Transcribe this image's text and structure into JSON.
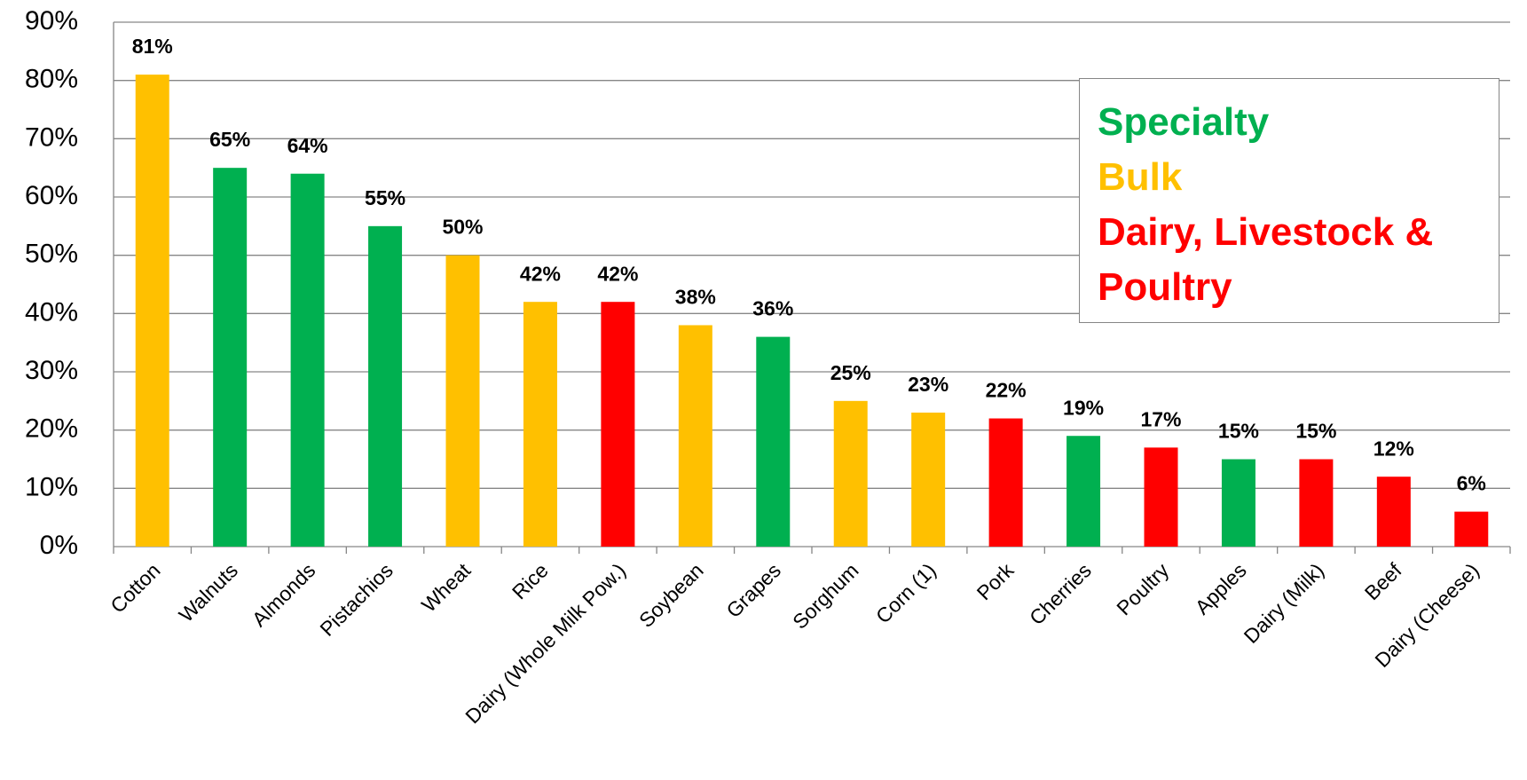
{
  "chart_data": {
    "type": "bar",
    "categories": [
      "Cotton",
      "Walnuts",
      "Almonds",
      "Pistachios",
      "Wheat",
      "Rice",
      "Dairy (Whole Milk Pow.)",
      "Soybean",
      "Grapes",
      "Sorghum",
      "Corn (1)",
      "Pork",
      "Cherries",
      "Poultry",
      "Apples",
      "Dairy (Milk)",
      "Beef",
      "Dairy (Cheese)"
    ],
    "values": [
      81,
      65,
      64,
      55,
      50,
      42,
      42,
      38,
      36,
      25,
      23,
      22,
      19,
      17,
      15,
      15,
      12,
      6
    ],
    "value_labels": [
      "81%",
      "65%",
      "64%",
      "55%",
      "50%",
      "42%",
      "42%",
      "38%",
      "36%",
      "25%",
      "23%",
      "22%",
      "19%",
      "17%",
      "15%",
      "15%",
      "12%",
      "6%"
    ],
    "colors": [
      "#ffc000",
      "#00b050",
      "#00b050",
      "#00b050",
      "#ffc000",
      "#ffc000",
      "#ff0000",
      "#ffc000",
      "#00b050",
      "#ffc000",
      "#ffc000",
      "#ff0000",
      "#00b050",
      "#ff0000",
      "#00b050",
      "#ff0000",
      "#ff0000",
      "#ff0000"
    ],
    "legend": [
      {
        "name": "Specialty",
        "color": "#00b050"
      },
      {
        "name": "Bulk",
        "color": "#ffc000"
      },
      {
        "name": "Dairy, Livestock & Poultry",
        "color": "#ff0000"
      }
    ],
    "ylim": [
      0,
      90
    ],
    "yticks": [
      {
        "value": 0,
        "label": "0%"
      },
      {
        "value": 10,
        "label": "10%"
      },
      {
        "value": 20,
        "label": "20%"
      },
      {
        "value": 30,
        "label": "30%"
      },
      {
        "value": 40,
        "label": "40%"
      },
      {
        "value": 50,
        "label": "50%"
      },
      {
        "value": 60,
        "label": "60%"
      },
      {
        "value": 70,
        "label": "70%"
      },
      {
        "value": 80,
        "label": "80%"
      },
      {
        "value": 90,
        "label": "90%"
      }
    ],
    "grid": true
  }
}
